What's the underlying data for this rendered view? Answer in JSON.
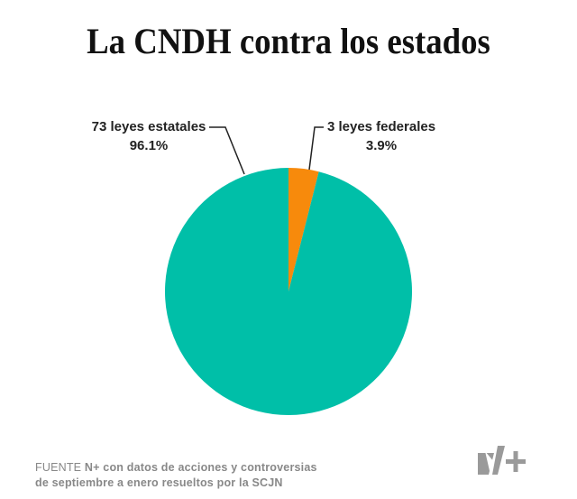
{
  "title": "La CNDH contra los estados",
  "chart_data": {
    "type": "pie",
    "slices": [
      {
        "label": "3 leyes federales",
        "value": 3,
        "percent_label": "3.9%",
        "color": "#F78A0C"
      },
      {
        "label": "73 leyes estatales",
        "value": 73,
        "percent_label": "96.1%",
        "color": "#00BFA8"
      }
    ],
    "start_angle": "12 o'clock",
    "direction": "clockwise"
  },
  "source": {
    "prefix": "FUENTE",
    "line1": "N+ con datos de acciones y controversias",
    "line2": "de septiembre a enero resueltos por la SCJN"
  },
  "logo": {
    "text": "N+",
    "color": "#9a9a9a"
  }
}
